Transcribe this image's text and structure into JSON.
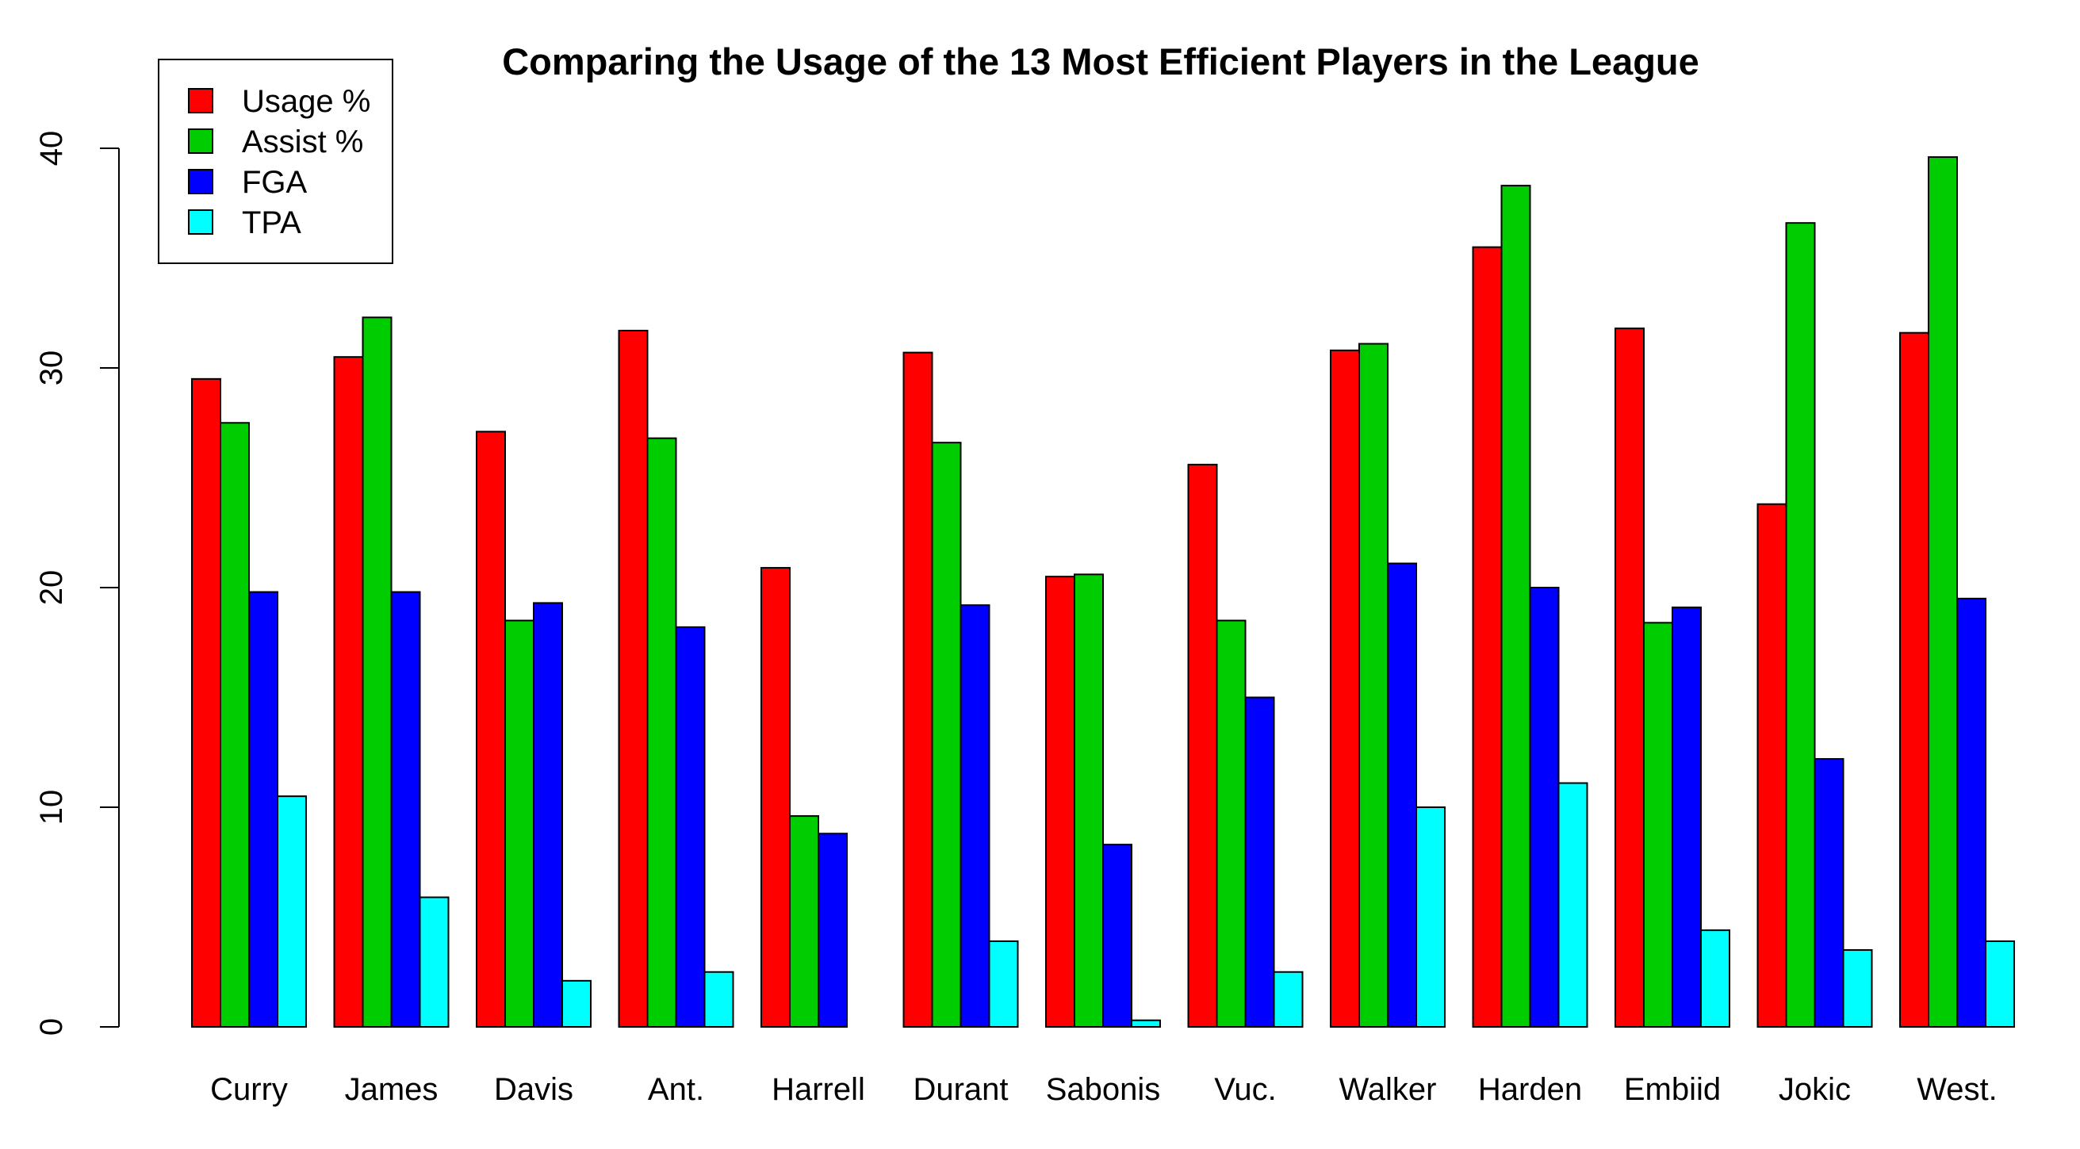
{
  "chart_data": {
    "type": "bar",
    "title": "Comparing the Usage of the 13 Most Efficient Players in the League",
    "xlabel": "",
    "ylabel": "",
    "ylim": [
      0,
      40
    ],
    "yticks": [
      0,
      10,
      20,
      30,
      40
    ],
    "grid": false,
    "legend_position": "top-left",
    "categories": [
      "Curry",
      "James",
      "Davis",
      "Ant.",
      "Harrell",
      "Durant",
      "Sabonis",
      "Vuc.",
      "Walker",
      "Harden",
      "Embiid",
      "Jokic",
      "West."
    ],
    "series": [
      {
        "name": "Usage %",
        "color": "#ff0000",
        "values": [
          29.5,
          30.5,
          27.1,
          31.7,
          20.9,
          30.7,
          20.5,
          25.6,
          30.8,
          35.5,
          31.8,
          23.8,
          31.6
        ]
      },
      {
        "name": "Assist %",
        "color": "#00cd00",
        "values": [
          27.5,
          32.3,
          18.5,
          26.8,
          9.6,
          26.6,
          20.6,
          18.5,
          31.1,
          38.3,
          18.4,
          36.6,
          39.6
        ]
      },
      {
        "name": "FGA",
        "color": "#0000ff",
        "values": [
          19.8,
          19.8,
          19.3,
          18.2,
          8.8,
          19.2,
          8.3,
          15.0,
          21.1,
          20.0,
          19.1,
          12.2,
          19.5
        ]
      },
      {
        "name": "TPA",
        "color": "#00ffff",
        "values": [
          10.5,
          5.9,
          2.1,
          2.5,
          0.0,
          3.9,
          0.3,
          2.5,
          10.0,
          11.1,
          4.4,
          3.5,
          3.9
        ]
      }
    ]
  }
}
